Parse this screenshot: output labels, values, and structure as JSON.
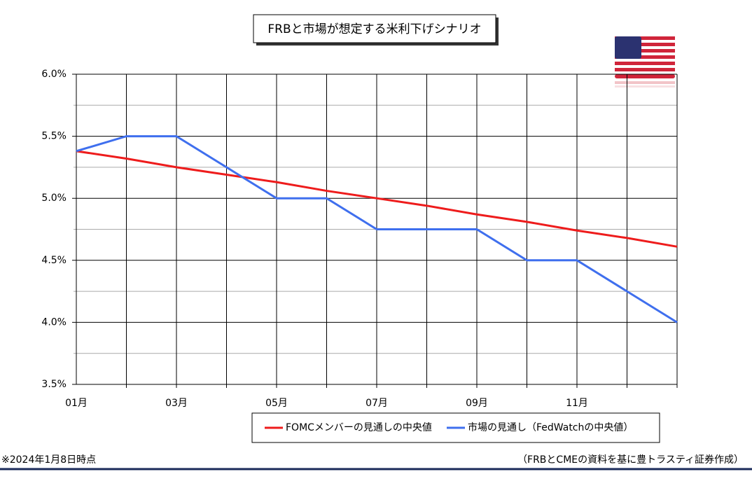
{
  "chart_data": {
    "type": "line",
    "title": "FRBと市場が想定する米利下げシナリオ",
    "categories": [
      "01月",
      null,
      "03月",
      null,
      "05月",
      null,
      "07月",
      null,
      "09月",
      null,
      "11月",
      null,
      null
    ],
    "series": [
      {
        "name": "FOMCメンバーの見通しの中央値",
        "color": "#ee1c1c",
        "values": [
          5.38,
          5.32,
          5.25,
          5.19,
          5.13,
          5.06,
          5.0,
          4.94,
          4.87,
          4.81,
          4.74,
          4.68,
          4.61
        ]
      },
      {
        "name": "市場の見通し（FedWatchの中央値）",
        "color": "#3f6fee",
        "values": [
          5.38,
          5.5,
          5.5,
          5.25,
          5.0,
          5.0,
          4.75,
          4.75,
          4.75,
          4.5,
          4.5,
          4.25,
          4.0
        ]
      }
    ],
    "ylim": [
      3.5,
      6.0
    ],
    "yticks": [
      {
        "value": 3.5,
        "label": "3.5%"
      },
      {
        "value": 4.0,
        "label": "4.0%"
      },
      {
        "value": 4.5,
        "label": "4.5%"
      },
      {
        "value": 5.0,
        "label": "5.0%"
      },
      {
        "value": 5.5,
        "label": "5.5%"
      },
      {
        "value": 6.0,
        "label": "6.0%"
      }
    ],
    "yminorticks": [
      3.75,
      4.25,
      4.75,
      5.25,
      5.75
    ],
    "grid": true,
    "legend": "bottom",
    "note_left": "※2024年1月8日時点",
    "note_right": "（FRBとCMEの資料を基に豊トラスティ証券作成）"
  }
}
